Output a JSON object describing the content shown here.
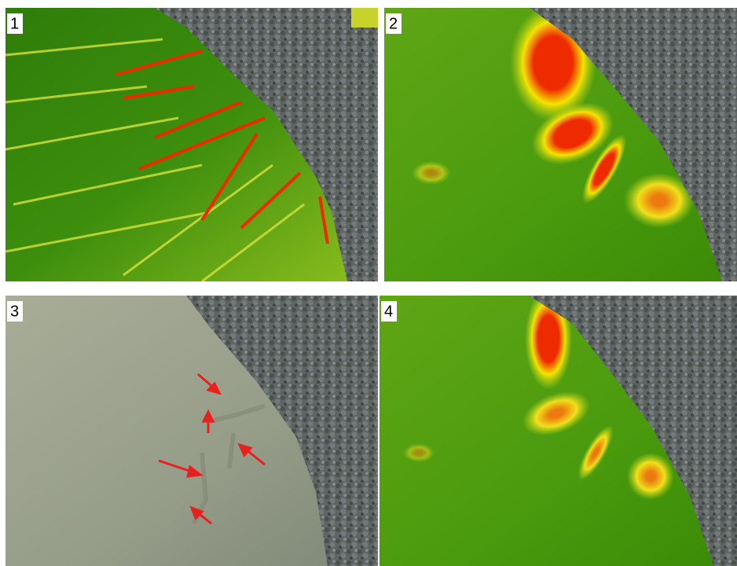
{
  "panels": [
    {
      "label": "1"
    },
    {
      "label": "2"
    },
    {
      "label": "3"
    },
    {
      "label": "4"
    }
  ]
}
